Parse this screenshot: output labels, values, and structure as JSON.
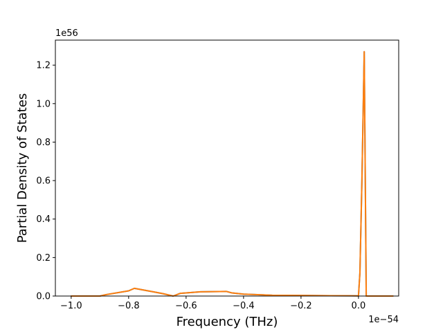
{
  "chart_data": {
    "type": "line",
    "xlabel": "Frequency (THz)",
    "ylabel": "Partial Density of States",
    "x_offset_text": "1e−54",
    "y_offset_text": "1e56",
    "xlim": [
      -1.055,
      0.14
    ],
    "ylim": [
      0,
      1.33
    ],
    "x_ticks": [
      -1.0,
      -0.8,
      -0.6,
      -0.4,
      -0.2,
      0.0
    ],
    "x_tick_labels": [
      "−1.0",
      "−0.8",
      "−0.6",
      "−0.4",
      "−0.2",
      "0.0"
    ],
    "y_ticks": [
      0.0,
      0.2,
      0.4,
      0.6,
      0.8,
      1.0,
      1.2
    ],
    "y_tick_labels": [
      "0.0",
      "0.2",
      "0.4",
      "0.6",
      "0.8",
      "1.0",
      "1.2"
    ],
    "grid": false,
    "legend": "none",
    "series": [
      {
        "color": "#1f77b4",
        "x": [
          -1.0,
          -0.9,
          -0.88,
          -0.8,
          -0.78,
          -0.7,
          -0.68,
          -0.645,
          -0.62,
          -0.55,
          -0.46,
          -0.44,
          -0.4,
          -0.3,
          -0.2,
          -0.1,
          0.0,
          0.005,
          0.012,
          0.02,
          0.027,
          0.03,
          0.04,
          0.12
        ],
        "y": [
          0.0,
          0.0,
          0.007,
          0.027,
          0.04,
          0.018,
          0.012,
          0.0,
          0.014,
          0.022,
          0.024,
          0.016,
          0.01,
          0.004,
          0.003,
          0.002,
          0.001,
          0.12,
          0.6,
          1.27,
          0.0,
          0.0,
          0.0,
          0.0
        ]
      },
      {
        "color": "#ff7f0e",
        "x": [
          -1.0,
          -0.9,
          -0.88,
          -0.8,
          -0.78,
          -0.7,
          -0.68,
          -0.645,
          -0.62,
          -0.55,
          -0.46,
          -0.44,
          -0.4,
          -0.3,
          -0.2,
          -0.1,
          0.0,
          0.005,
          0.012,
          0.02,
          0.027,
          0.03,
          0.04,
          0.12
        ],
        "y": [
          0.0,
          0.0,
          0.007,
          0.027,
          0.04,
          0.018,
          0.012,
          0.0,
          0.014,
          0.022,
          0.024,
          0.016,
          0.01,
          0.004,
          0.003,
          0.002,
          0.001,
          0.12,
          0.6,
          1.27,
          0.0,
          0.0,
          0.0,
          0.0
        ]
      }
    ]
  }
}
